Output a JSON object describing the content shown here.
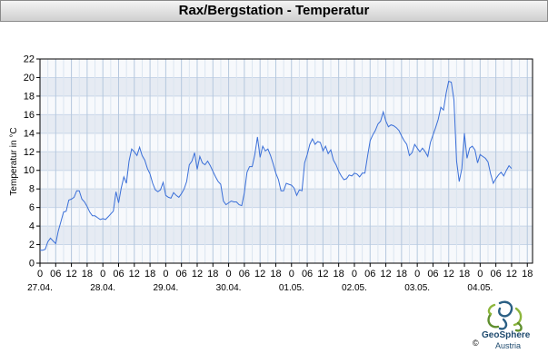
{
  "title": "Rax/Bergstation - Temperatur",
  "chart_data": {
    "type": "line",
    "ylabel": "Temperatur in °C",
    "ylim": [
      0,
      22
    ],
    "yticks": [
      0,
      2,
      4,
      6,
      8,
      10,
      12,
      14,
      16,
      18,
      20,
      22
    ],
    "x_hour_range": [
      0,
      188
    ],
    "x_hour_ticks": [
      "0",
      "06",
      "12",
      "18"
    ],
    "dates": [
      "27.04.",
      "28.04.",
      "29.04.",
      "30.04.",
      "01.05.",
      "02.05.",
      "03.05.",
      "04.05."
    ],
    "grid": true,
    "series": [
      {
        "color": "#3a6fd8",
        "points": [
          [
            0,
            1.4
          ],
          [
            1,
            1.4
          ],
          [
            2,
            1.5
          ],
          [
            3,
            2.3
          ],
          [
            4,
            2.7
          ],
          [
            5,
            2.4
          ],
          [
            6,
            2.1
          ],
          [
            7,
            3.5
          ],
          [
            8,
            4.5
          ],
          [
            9,
            5.5
          ],
          [
            10,
            5.6
          ],
          [
            11,
            6.8
          ],
          [
            12,
            6.9
          ],
          [
            13,
            7.1
          ],
          [
            14,
            7.8
          ],
          [
            15,
            7.8
          ],
          [
            16,
            6.9
          ],
          [
            17,
            6.6
          ],
          [
            18,
            6.1
          ],
          [
            19,
            5.5
          ],
          [
            20,
            5.1
          ],
          [
            21,
            5.1
          ],
          [
            22,
            4.9
          ],
          [
            23,
            4.7
          ],
          [
            24,
            4.8
          ],
          [
            25,
            4.7
          ],
          [
            26,
            5.0
          ],
          [
            27,
            5.3
          ],
          [
            28,
            5.6
          ],
          [
            29,
            7.7
          ],
          [
            30,
            6.5
          ],
          [
            31,
            8.1
          ],
          [
            32,
            9.3
          ],
          [
            33,
            8.6
          ],
          [
            34,
            11.0
          ],
          [
            35,
            12.3
          ],
          [
            36,
            12.0
          ],
          [
            37,
            11.6
          ],
          [
            38,
            12.5
          ],
          [
            39,
            11.6
          ],
          [
            40,
            11.1
          ],
          [
            41,
            10.2
          ],
          [
            42,
            9.6
          ],
          [
            43,
            8.6
          ],
          [
            44,
            7.9
          ],
          [
            45,
            7.7
          ],
          [
            46,
            7.9
          ],
          [
            47,
            8.7
          ],
          [
            48,
            7.3
          ],
          [
            49,
            7.1
          ],
          [
            50,
            7.0
          ],
          [
            51,
            7.6
          ],
          [
            52,
            7.3
          ],
          [
            53,
            7.1
          ],
          [
            54,
            7.5
          ],
          [
            55,
            8.0
          ],
          [
            56,
            8.8
          ],
          [
            57,
            10.6
          ],
          [
            58,
            11.0
          ],
          [
            59,
            11.9
          ],
          [
            60,
            10.1
          ],
          [
            61,
            11.5
          ],
          [
            62,
            10.8
          ],
          [
            63,
            10.6
          ],
          [
            64,
            11.0
          ],
          [
            65,
            10.5
          ],
          [
            66,
            9.9
          ],
          [
            67,
            9.3
          ],
          [
            68,
            8.8
          ],
          [
            69,
            8.5
          ],
          [
            70,
            6.7
          ],
          [
            71,
            6.3
          ],
          [
            72,
            6.5
          ],
          [
            73,
            6.7
          ],
          [
            74,
            6.6
          ],
          [
            75,
            6.6
          ],
          [
            76,
            6.3
          ],
          [
            77,
            6.2
          ],
          [
            78,
            7.6
          ],
          [
            79,
            9.8
          ],
          [
            80,
            10.4
          ],
          [
            81,
            10.4
          ],
          [
            82,
            11.7
          ],
          [
            83,
            13.6
          ],
          [
            84,
            11.4
          ],
          [
            85,
            12.6
          ],
          [
            86,
            12.1
          ],
          [
            87,
            12.3
          ],
          [
            88,
            11.6
          ],
          [
            89,
            10.7
          ],
          [
            90,
            9.7
          ],
          [
            91,
            9.0
          ],
          [
            92,
            7.8
          ],
          [
            93,
            7.8
          ],
          [
            94,
            8.6
          ],
          [
            95,
            8.5
          ],
          [
            96,
            8.4
          ],
          [
            97,
            8.1
          ],
          [
            98,
            7.3
          ],
          [
            99,
            7.9
          ],
          [
            100,
            7.8
          ],
          [
            101,
            10.8
          ],
          [
            102,
            11.7
          ],
          [
            103,
            12.8
          ],
          [
            104,
            13.4
          ],
          [
            105,
            12.8
          ],
          [
            106,
            13.1
          ],
          [
            107,
            13.0
          ],
          [
            108,
            12.1
          ],
          [
            109,
            12.6
          ],
          [
            110,
            11.8
          ],
          [
            111,
            12.2
          ],
          [
            112,
            11.1
          ],
          [
            113,
            10.6
          ],
          [
            114,
            9.9
          ],
          [
            115,
            9.4
          ],
          [
            116,
            9.0
          ],
          [
            117,
            9.1
          ],
          [
            118,
            9.5
          ],
          [
            119,
            9.4
          ],
          [
            120,
            9.7
          ],
          [
            121,
            9.6
          ],
          [
            122,
            9.3
          ],
          [
            123,
            9.7
          ],
          [
            124,
            9.7
          ],
          [
            125,
            11.5
          ],
          [
            126,
            13.2
          ],
          [
            127,
            13.8
          ],
          [
            128,
            14.3
          ],
          [
            129,
            15.0
          ],
          [
            130,
            15.3
          ],
          [
            131,
            16.3
          ],
          [
            132,
            15.3
          ],
          [
            133,
            14.7
          ],
          [
            134,
            14.9
          ],
          [
            135,
            14.8
          ],
          [
            136,
            14.6
          ],
          [
            137,
            14.3
          ],
          [
            138,
            13.7
          ],
          [
            139,
            13.2
          ],
          [
            140,
            12.8
          ],
          [
            141,
            11.6
          ],
          [
            142,
            11.9
          ],
          [
            143,
            12.8
          ],
          [
            144,
            12.4
          ],
          [
            145,
            12.0
          ],
          [
            146,
            12.4
          ],
          [
            147,
            12.0
          ],
          [
            148,
            11.5
          ],
          [
            149,
            13.0
          ],
          [
            150,
            13.8
          ],
          [
            151,
            14.6
          ],
          [
            152,
            15.5
          ],
          [
            153,
            16.8
          ],
          [
            154,
            16.5
          ],
          [
            155,
            18.3
          ],
          [
            156,
            19.6
          ],
          [
            157,
            19.5
          ],
          [
            158,
            17.6
          ],
          [
            159,
            11.0
          ],
          [
            160,
            8.8
          ],
          [
            161,
            10.2
          ],
          [
            162,
            14.0
          ],
          [
            163,
            11.3
          ],
          [
            164,
            12.4
          ],
          [
            165,
            12.6
          ],
          [
            166,
            12.2
          ],
          [
            167,
            10.8
          ],
          [
            168,
            11.7
          ],
          [
            169,
            11.5
          ],
          [
            170,
            11.3
          ],
          [
            171,
            10.9
          ],
          [
            172,
            9.6
          ],
          [
            173,
            8.6
          ],
          [
            174,
            9.1
          ],
          [
            175,
            9.5
          ],
          [
            176,
            9.8
          ],
          [
            177,
            9.4
          ],
          [
            178,
            10.0
          ],
          [
            179,
            10.5
          ],
          [
            180,
            10.2
          ]
        ]
      }
    ]
  },
  "logo": {
    "name": "GeoSphere",
    "sub": "Austria",
    "copyright": "©"
  }
}
